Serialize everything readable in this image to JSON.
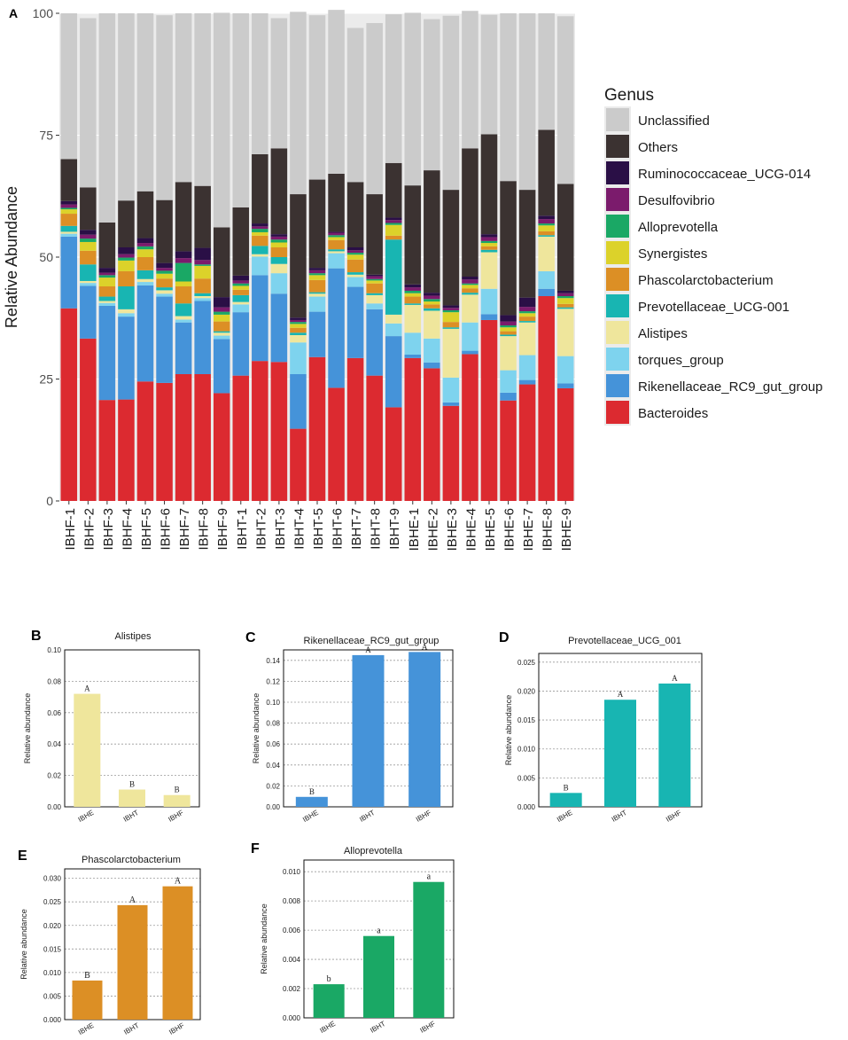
{
  "colors": {
    "Unclassified": "#cbcbcb",
    "Others": "#3b3231",
    "Ruminococcaceae_UCG-014": "#2a0f46",
    "Desulfovibrio": "#7b1b6c",
    "Alloprevotella": "#1aa865",
    "Synergistes": "#dcd22a",
    "Phascolarctobacterium": "#dc8f25",
    "Prevotellaceae_UCG-001": "#18b5b2",
    "Alistipes": "#efe69c",
    "torques_group": "#7ed3ee",
    "Rikenellaceae_RC9_gut_group": "#4593d9",
    "Bacteroides": "#dc2a30",
    "panel_bg": "#ebebeb"
  },
  "chart_data": [
    {
      "id": "A",
      "type": "bar",
      "stacked": true,
      "ylabel": "Relative Abundance",
      "ylim": [
        0,
        100
      ],
      "yticks": [
        0,
        25,
        50,
        75,
        100
      ],
      "legend_title": "Genus",
      "legend_position": "right",
      "categories": [
        "IBHF-1",
        "IBHF-2",
        "IBHF-3",
        "IBHF-4",
        "IBHF-5",
        "IBHF-6",
        "IBHF-7",
        "IBHF-8",
        "IBHF-9",
        "IBHT-1",
        "IBHT-2",
        "IBHT-3",
        "IBHT-4",
        "IBHT-5",
        "IBHT-6",
        "IBHT-7",
        "IBHT-8",
        "IBHT-9",
        "IBHE-1",
        "IBHE-2",
        "IBHE-3",
        "IBHE-4",
        "IBHE-5",
        "IBHE-6",
        "IBHE-7",
        "IBHE-8",
        "IBHE-9"
      ],
      "series": [
        {
          "name": "Bacteroides",
          "values": [
            39.5,
            33.3,
            20.7,
            20.8,
            24.5,
            24.2,
            26.0,
            26.0,
            22.1,
            25.7,
            28.7,
            28.5,
            14.8,
            29.5,
            23.2,
            29.3,
            25.7,
            19.2,
            29.3,
            27.2,
            19.5,
            30.1,
            37.1,
            20.6,
            23.9,
            42.0,
            23.1
          ]
        },
        {
          "name": "Rikenellaceae_RC9_gut_group",
          "values": [
            14.7,
            10.8,
            19.3,
            17.0,
            19.7,
            17.7,
            10.6,
            15.0,
            11.1,
            13.0,
            17.6,
            14.0,
            11.2,
            9.3,
            24.5,
            14.6,
            13.6,
            14.6,
            0.7,
            1.2,
            0.7,
            0.7,
            1.2,
            1.6,
            0.9,
            1.5,
            1.0
          ]
        },
        {
          "name": "torques_group",
          "values": [
            0.6,
            0.6,
            0.6,
            0.7,
            0.7,
            0.6,
            0.6,
            0.6,
            0.7,
            1.6,
            3.8,
            4.2,
            6.5,
            3.1,
            3.1,
            2.0,
            1.2,
            2.6,
            4.5,
            4.9,
            5.1,
            5.8,
            5.2,
            4.6,
            5.1,
            3.6,
            5.6
          ]
        },
        {
          "name": "Alistipes",
          "values": [
            0.4,
            0.4,
            0.4,
            0.8,
            0.6,
            0.7,
            0.7,
            0.4,
            0.6,
            0.5,
            0.5,
            1.9,
            1.5,
            0.6,
            0.4,
            0.5,
            1.7,
            1.8,
            5.7,
            5.7,
            10.0,
            5.7,
            7.5,
            7.0,
            6.7,
            7.1,
            9.7
          ]
        },
        {
          "name": "Prevotellaceae_UCG-001",
          "values": [
            1.2,
            3.4,
            0.9,
            4.7,
            1.8,
            0.6,
            2.6,
            0.6,
            0.3,
            1.4,
            1.7,
            1.4,
            0.5,
            0.3,
            0.4,
            0.5,
            0.4,
            15.4,
            0.3,
            0.5,
            0.3,
            0.4,
            0.5,
            0.3,
            0.3,
            0.3,
            0.3
          ]
        },
        {
          "name": "Phascolarctobacterium",
          "values": [
            2.5,
            2.8,
            2.1,
            3.1,
            2.7,
            1.8,
            3.5,
            3.0,
            2.0,
            1.1,
            2.1,
            2.0,
            1.0,
            2.5,
            1.9,
            2.6,
            2.0,
            0.8,
            1.4,
            0.8,
            1.1,
            0.9,
            0.7,
            0.7,
            0.9,
            0.8,
            0.7
          ]
        },
        {
          "name": "Synergistes",
          "values": [
            0.9,
            1.8,
            1.8,
            2.2,
            1.6,
            1.0,
            1.0,
            2.6,
            1.4,
            0.8,
            0.7,
            1.0,
            0.8,
            1.0,
            0.6,
            1.0,
            0.6,
            2.2,
            0.7,
            0.6,
            2.0,
            0.7,
            0.7,
            0.8,
            0.7,
            1.2,
            1.2
          ]
        },
        {
          "name": "Alloprevotella",
          "values": [
            0.3,
            0.7,
            0.5,
            0.6,
            0.6,
            0.6,
            3.8,
            0.3,
            0.6,
            0.5,
            0.7,
            0.6,
            0.4,
            0.4,
            0.4,
            0.4,
            0.3,
            0.4,
            0.5,
            0.5,
            0.4,
            0.3,
            0.4,
            0.4,
            0.4,
            0.4,
            0.4
          ]
        },
        {
          "name": "Desulfovibrio",
          "values": [
            0.7,
            0.8,
            0.5,
            0.7,
            0.7,
            0.6,
            1.0,
            0.9,
            0.9,
            0.6,
            0.5,
            0.6,
            0.4,
            0.6,
            0.5,
            0.5,
            0.6,
            0.6,
            0.7,
            0.7,
            0.5,
            0.8,
            0.8,
            0.8,
            0.9,
            0.9,
            0.6
          ]
        },
        {
          "name": "Ruminococcaceae_UCG-014",
          "values": [
            0.7,
            1.0,
            1.0,
            1.4,
            1.0,
            1.0,
            1.4,
            2.5,
            2.1,
            1.0,
            0.6,
            0.5,
            0.5,
            0.5,
            0.2,
            0.6,
            0.3,
            0.5,
            0.6,
            0.6,
            0.5,
            0.6,
            0.6,
            1.3,
            1.9,
            0.7,
            0.5
          ]
        },
        {
          "name": "Others",
          "values": [
            8.6,
            8.7,
            9.3,
            9.6,
            9.6,
            12.9,
            14.2,
            12.7,
            14.3,
            14.0,
            14.2,
            17.6,
            25.3,
            18.1,
            11.9,
            13.4,
            16.5,
            11.2,
            20.3,
            25.1,
            23.7,
            26.3,
            20.5,
            27.5,
            22.1,
            17.6,
            21.9
          ]
        },
        {
          "name": "Unclassified",
          "values": [
            29.9,
            34.7,
            42.9,
            38.4,
            36.5,
            37.9,
            34.6,
            35.4,
            44.0,
            39.8,
            28.9,
            26.7,
            37.4,
            33.7,
            33.6,
            31.6,
            35.1,
            30.5,
            35.4,
            31.0,
            35.7,
            28.2,
            24.5,
            34.4,
            36.2,
            23.9,
            34.4
          ]
        }
      ]
    },
    {
      "id": "B",
      "type": "bar",
      "title": "Alistipes",
      "ylabel": "Relative abundance",
      "categories": [
        "IBHE",
        "IBHT",
        "IBHF"
      ],
      "values": [
        0.072,
        0.011,
        0.0075
      ],
      "letters": [
        "A",
        "B",
        "B"
      ],
      "ylim": [
        0,
        0.1
      ],
      "yticks": [
        "0.00",
        "0.02",
        "0.04",
        "0.06",
        "0.08",
        "0.10"
      ],
      "color_key": "Alistipes"
    },
    {
      "id": "C",
      "type": "bar",
      "title": "Rikenellaceae_RC9_gut_group",
      "ylabel": "Relative abundance",
      "categories": [
        "IBHE",
        "IBHT",
        "IBHF"
      ],
      "values": [
        0.0095,
        0.145,
        0.148
      ],
      "letters": [
        "B",
        "A",
        "A"
      ],
      "ylim": [
        0,
        0.15
      ],
      "yticks": [
        "0.00",
        "0.02",
        "0.04",
        "0.06",
        "0.08",
        "0.10",
        "0.12",
        "0.14"
      ],
      "color_key": "Rikenellaceae_RC9_gut_group"
    },
    {
      "id": "D",
      "type": "bar",
      "title": "Prevotellaceae_UCG_001",
      "ylabel": "Relative abundance",
      "categories": [
        "IBHE",
        "IBHT",
        "IBHF"
      ],
      "values": [
        0.0024,
        0.0185,
        0.0213
      ],
      "letters": [
        "B",
        "A",
        "A"
      ],
      "ylim": [
        0,
        0.0265
      ],
      "yticks": [
        "0.000",
        "0.005",
        "0.010",
        "0.015",
        "0.020",
        "0.025"
      ],
      "color_key": "Prevotellaceae_UCG-001"
    },
    {
      "id": "E",
      "type": "bar",
      "title": "Phascolarctobacterium",
      "ylabel": "Relative abundance",
      "categories": [
        "IBHE",
        "IBHT",
        "IBHF"
      ],
      "values": [
        0.0083,
        0.0243,
        0.0283
      ],
      "letters": [
        "B",
        "A",
        "A"
      ],
      "ylim": [
        0,
        0.032
      ],
      "yticks": [
        "0.000",
        "0.005",
        "0.010",
        "0.015",
        "0.020",
        "0.025",
        "0.030"
      ],
      "color_key": "Phascolarctobacterium"
    },
    {
      "id": "F",
      "type": "bar",
      "title": "Alloprevotella",
      "ylabel": "Relative abundance",
      "categories": [
        "IBHE",
        "IBHT",
        "IBHF"
      ],
      "values": [
        0.0023,
        0.0056,
        0.0093
      ],
      "letters": [
        "b",
        "a",
        "a"
      ],
      "ylim": [
        0,
        0.0108
      ],
      "yticks": [
        "0.000",
        "0.002",
        "0.004",
        "0.006",
        "0.008",
        "0.010"
      ],
      "color_key": "Alloprevotella"
    }
  ]
}
